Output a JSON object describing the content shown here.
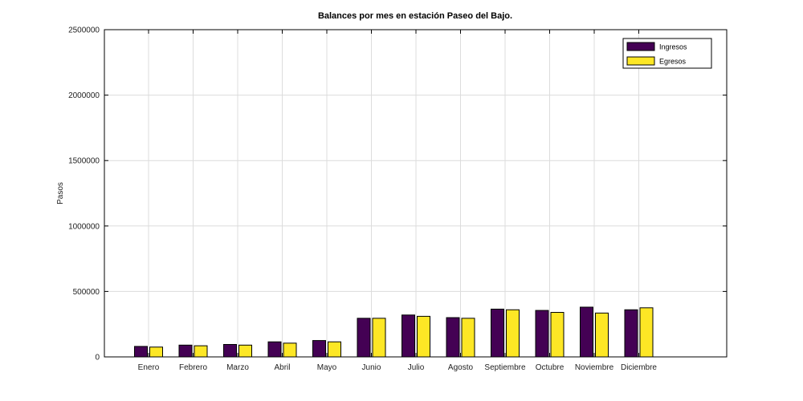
{
  "chart_data": {
    "type": "bar",
    "title": "Balances por mes en estación Paseo del Bajo.",
    "xlabel": "",
    "ylabel": "Pasos",
    "ylim": [
      0,
      2500000
    ],
    "yticks": [
      0,
      500000,
      1000000,
      1500000,
      2000000,
      2500000
    ],
    "grid": true,
    "legend_position": "top-right",
    "categories": [
      "Enero",
      "Febrero",
      "Marzo",
      "Abril",
      "Mayo",
      "Junio",
      "Julio",
      "Agosto",
      "Septiembre",
      "Octubre",
      "Noviembre",
      "Diciembre"
    ],
    "series": [
      {
        "name": "Ingresos",
        "color": "#440154",
        "values": [
          80000,
          90000,
          95000,
          115000,
          125000,
          295000,
          320000,
          300000,
          365000,
          355000,
          380000,
          360000
        ]
      },
      {
        "name": "Egresos",
        "color": "#fde725",
        "values": [
          75000,
          85000,
          90000,
          105000,
          115000,
          295000,
          310000,
          295000,
          360000,
          340000,
          335000,
          375000
        ]
      }
    ]
  }
}
